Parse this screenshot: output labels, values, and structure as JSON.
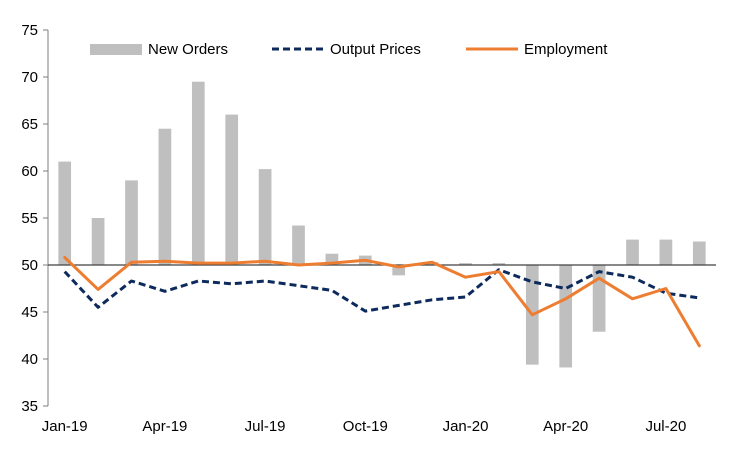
{
  "chart_data": {
    "type": "bar+line",
    "title": "",
    "xlabel": "",
    "ylabel": "",
    "ylim": [
      35,
      75
    ],
    "yticks": [
      35,
      40,
      45,
      50,
      55,
      60,
      65,
      70,
      75
    ],
    "bar_baseline": 50,
    "grid": false,
    "legend_position": "top",
    "categories": [
      "Jan-19",
      "Feb-19",
      "Mar-19",
      "Apr-19",
      "May-19",
      "Jun-19",
      "Jul-19",
      "Aug-19",
      "Sep-19",
      "Oct-19",
      "Nov-19",
      "Dec-19",
      "Jan-20",
      "Feb-20",
      "Mar-20",
      "Apr-20",
      "May-20",
      "Jun-20",
      "Jul-20",
      "Aug-20"
    ],
    "xtick_labels": [
      {
        "index": 0,
        "label": "Jan-19"
      },
      {
        "index": 3,
        "label": "Apr-19"
      },
      {
        "index": 6,
        "label": "Jul-19"
      },
      {
        "index": 9,
        "label": "Oct-19"
      },
      {
        "index": 12,
        "label": "Jan-20"
      },
      {
        "index": 15,
        "label": "Apr-20"
      },
      {
        "index": 18,
        "label": "Jul-20"
      }
    ],
    "series": [
      {
        "name": "New Orders",
        "kind": "bar",
        "color": "#bfbfbf",
        "values": [
          61.0,
          55.0,
          59.0,
          64.5,
          69.5,
          66.0,
          60.2,
          54.2,
          51.2,
          51.0,
          48.9,
          50.3,
          50.2,
          50.2,
          39.4,
          39.1,
          42.9,
          52.7,
          52.7,
          52.5
        ]
      },
      {
        "name": "Output Prices",
        "kind": "line",
        "dash": true,
        "color": "#0d2a5c",
        "values": [
          49.3,
          45.5,
          48.3,
          47.2,
          48.3,
          48.0,
          48.3,
          47.8,
          47.3,
          45.1,
          45.7,
          46.3,
          46.6,
          49.5,
          48.2,
          47.5,
          49.3,
          48.7,
          47.0,
          46.5
        ]
      },
      {
        "name": "Employment",
        "kind": "line",
        "dash": false,
        "color": "#ed7d31",
        "values": [
          50.8,
          47.4,
          50.3,
          50.4,
          50.2,
          50.2,
          50.4,
          50.0,
          50.2,
          50.5,
          49.8,
          50.3,
          48.7,
          49.3,
          44.7,
          46.4,
          48.6,
          46.4,
          47.5,
          41.4
        ]
      }
    ]
  }
}
